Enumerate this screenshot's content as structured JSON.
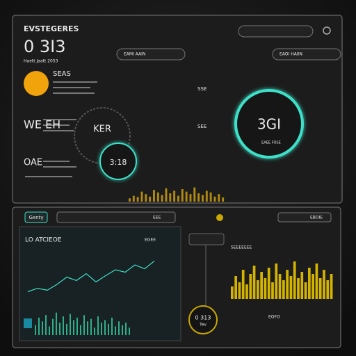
{
  "header": {
    "title": "EVSTEGERES",
    "time": "0 3I3",
    "subtitle": "Haett Jaatt 2053",
    "search": "",
    "pill_left": "EAMI AAIN",
    "pill_right": "EAOI HAIIN"
  },
  "weather": {
    "label": "SEAS",
    "big_a": "WE EH",
    "big_b": "OAE"
  },
  "gauges": {
    "ring_dark": "KER",
    "ring_small": "3:18",
    "ring_main": "3GI",
    "ring_main_sub": "EAEE FOSE",
    "side_a": "SSE",
    "side_b": "SEE",
    "ring_bottom": "0 313",
    "ring_bottom_sub": "Tev"
  },
  "tabs": {
    "active": "Genty",
    "t2": "EEE",
    "t3": "EBOIE"
  },
  "panel_left": {
    "title": "LO ATCIEOE",
    "note": "EGEE"
  },
  "panel_right": {
    "title": "SEEEEEEE",
    "note": "EOFO"
  },
  "activity_bars": {
    "values": [
      20,
      35,
      28,
      60,
      45,
      30,
      70,
      55,
      40,
      80,
      50,
      65,
      35,
      75,
      60,
      45,
      85,
      50,
      40,
      65,
      55,
      30,
      45,
      25
    ]
  },
  "trend_line": {
    "values": [
      15,
      22,
      18,
      30,
      45,
      38,
      52,
      35,
      48,
      60,
      55,
      70,
      62,
      78
    ]
  },
  "volume_bars": {
    "values": [
      30,
      55,
      40,
      70,
      35,
      60,
      80,
      45,
      65,
      50,
      75,
      40,
      85,
      60,
      45,
      70,
      55,
      90,
      50,
      65,
      40,
      75,
      60,
      85,
      50,
      70,
      45,
      60
    ]
  },
  "green_bars": {
    "values": [
      40,
      70,
      55,
      80,
      35,
      65,
      90,
      50,
      75,
      45,
      85,
      60,
      70,
      40,
      80,
      55,
      65,
      30,
      75,
      50,
      60,
      45,
      70,
      35,
      55,
      40,
      50,
      30
    ]
  }
}
